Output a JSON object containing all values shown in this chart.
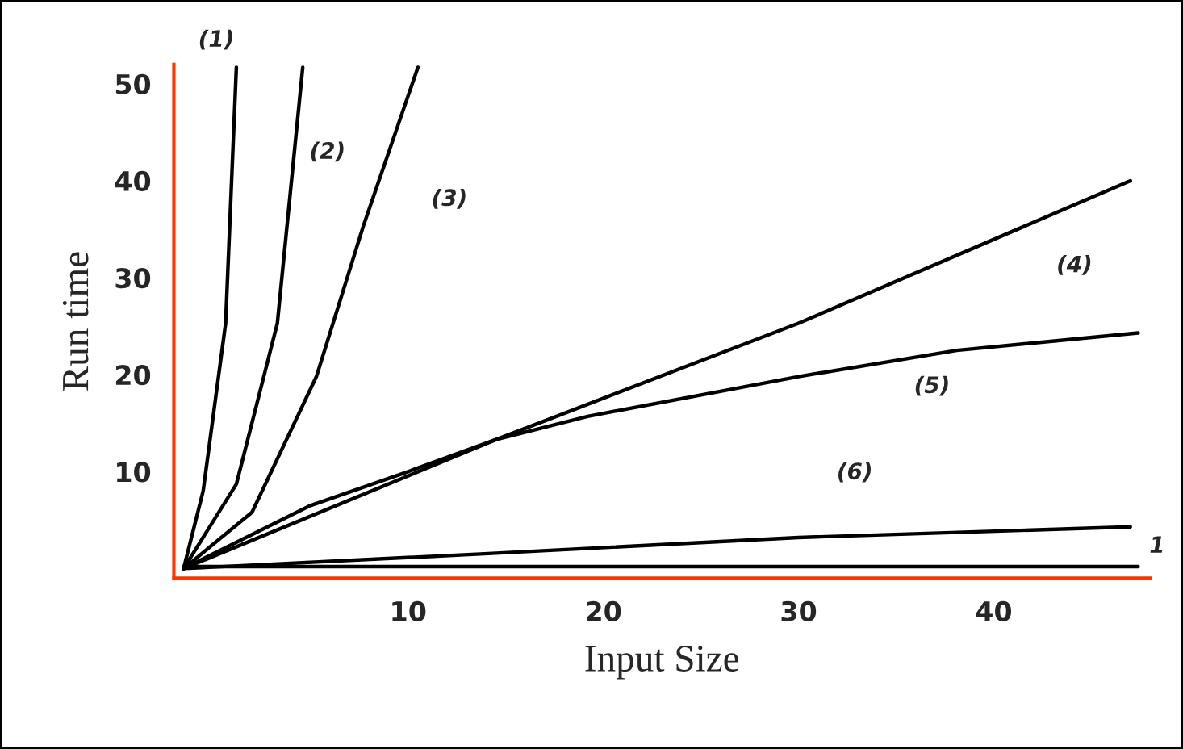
{
  "chart_data": {
    "type": "line",
    "xlabel": "Input Size",
    "ylabel": "Run time",
    "xlim": [
      -2,
      48
    ],
    "ylim": [
      -1,
      52
    ],
    "xticks": [
      10,
      20,
      30,
      40
    ],
    "yticks": [
      10,
      20,
      30,
      40,
      50
    ],
    "grid": false,
    "legend": false,
    "marker": "none",
    "line_style": "solid",
    "series": [
      {
        "name": "(1)",
        "color": "#000000",
        "x": [
          -1.5,
          -0.5,
          0.65,
          1.2
        ],
        "values": [
          0,
          8,
          25.3,
          51.7
        ]
      },
      {
        "name": "(2)",
        "color": "#000000",
        "x": [
          -1.5,
          1.2,
          3.3,
          4.6
        ],
        "values": [
          0,
          8.7,
          25.3,
          51.7
        ]
      },
      {
        "name": "(3)",
        "color": "#000000",
        "x": [
          -1.5,
          2.0,
          5.3,
          7.7,
          10.5
        ],
        "values": [
          0,
          5.8,
          19.8,
          35.3,
          51.7
        ]
      },
      {
        "name": "(4)",
        "color": "#000000",
        "x": [
          -1.5,
          14.5,
          30,
          47
        ],
        "values": [
          0,
          13.3,
          25.3,
          40
        ]
      },
      {
        "name": "(5)",
        "color": "#000000",
        "x": [
          -1.5,
          5,
          10,
          14.5,
          19.2,
          30,
          38.1,
          47.4
        ],
        "values": [
          0,
          6.5,
          10,
          13.3,
          15.7,
          19.8,
          22.5,
          24.3
        ]
      },
      {
        "name": "(6)",
        "color": "#000000",
        "x": [
          -1.5,
          13.7,
          30,
          47
        ],
        "values": [
          0,
          1.5,
          3.2,
          4.3
        ]
      },
      {
        "name": "1",
        "color": "#000000",
        "x": [
          -1.5,
          47.4
        ],
        "values": [
          0.2,
          0.2
        ]
      }
    ]
  }
}
